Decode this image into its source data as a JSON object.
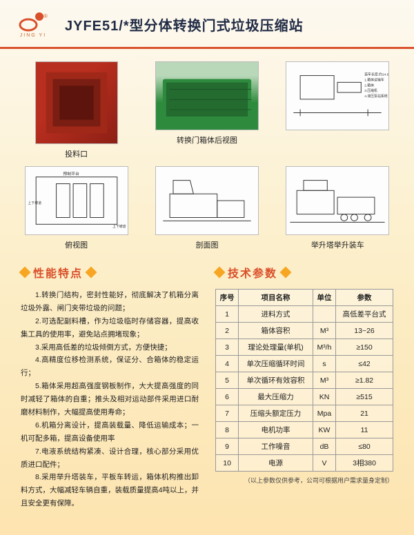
{
  "header": {
    "logo_text": "JING YI",
    "title": "JYFE51/*型分体转换门式垃圾压缩站"
  },
  "gallery": [
    {
      "caption": "投料口",
      "kind": "photo-red"
    },
    {
      "caption": "转换门箱体后视图",
      "kind": "photo-green"
    },
    {
      "caption": "",
      "kind": "schematic"
    },
    {
      "caption": "俯视图",
      "kind": "line"
    },
    {
      "caption": "剖面图",
      "kind": "line"
    },
    {
      "caption": "举升塔举升装车",
      "kind": "line"
    }
  ],
  "sections": {
    "features_title": "性能特点",
    "params_title": "技术参数"
  },
  "features": [
    "1.转换门结构，密封性能好，彻底解决了机箱分离垃圾外露、闸门夹带垃圾的问题；",
    "2.可选配副料槽，作为垃圾临时存储容器，提高收集工具的使用率，避免站点拥堵现象；",
    "3.采用高低差的垃圾倾倒方式，方便快捷；",
    "4.高精度位移检测系统，保证分、合箱体的稳定运行；",
    "5.箱体采用超高强度钢板制作，大大提高强度的同时减轻了箱体的自重；推头及相对运动部件采用进口耐磨材料制作，大幅提高使用寿命；",
    "6.机箱分离设计，提高装载量、降低运输成本；一机可配多箱，提高设备使用率",
    "7.电液系统结构紧凑、设计合理，核心部分采用优质进口配件；",
    "8.采用举升塔装车，平板车转运，箱体机构推出卸料方式，大幅减轻车辆自重，装载质量提高4吨以上，并且安全更有保障。"
  ],
  "table": {
    "headers": [
      "序号",
      "项目名称",
      "单位",
      "参数"
    ],
    "rows": [
      [
        "1",
        "进料方式",
        "",
        "高低差平台式"
      ],
      [
        "2",
        "箱体容积",
        "M³",
        "13~26"
      ],
      [
        "3",
        "理论处理量(单机)",
        "M³/h",
        "≥150"
      ],
      [
        "4",
        "单次压缩循环时间",
        "s",
        "≤42"
      ],
      [
        "5",
        "单次循环有效容积",
        "M³",
        "≥1.82"
      ],
      [
        "6",
        "最大压缩力",
        "KN",
        "≥515"
      ],
      [
        "7",
        "压缩头额定压力",
        "Mpa",
        "21"
      ],
      [
        "8",
        "电机功率",
        "KW",
        "11"
      ],
      [
        "9",
        "工作噪音",
        "dB",
        "≤80"
      ],
      [
        "10",
        "电源",
        "V",
        "3相380"
      ]
    ],
    "footnote": "（以上参数仅供参考，公司可根据用户需求量身定制）"
  },
  "colors": {
    "accent_orange": "#d94f2a",
    "diamond": "#f6a623",
    "border": "#999"
  }
}
